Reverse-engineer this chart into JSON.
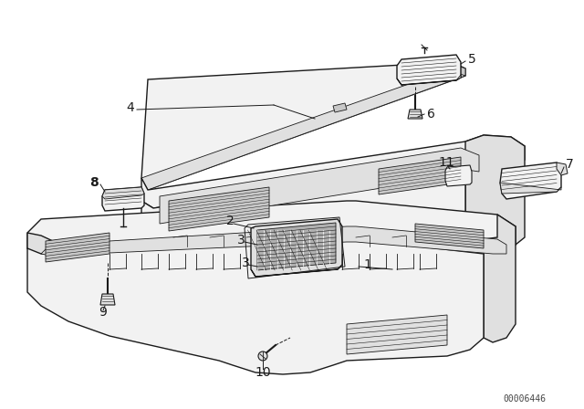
{
  "background_color": "#ffffff",
  "watermark": "00006446",
  "lc": "#1a1a1a",
  "fc_light": "#f2f2f2",
  "fc_med": "#e0e0e0",
  "fc_dark": "#c8c8c8",
  "fc_darker": "#b0b0b0",
  "lw_main": 1.0,
  "lw_thin": 0.6,
  "lw_thick": 1.4,
  "label_fs": 10,
  "wm_fs": 7
}
